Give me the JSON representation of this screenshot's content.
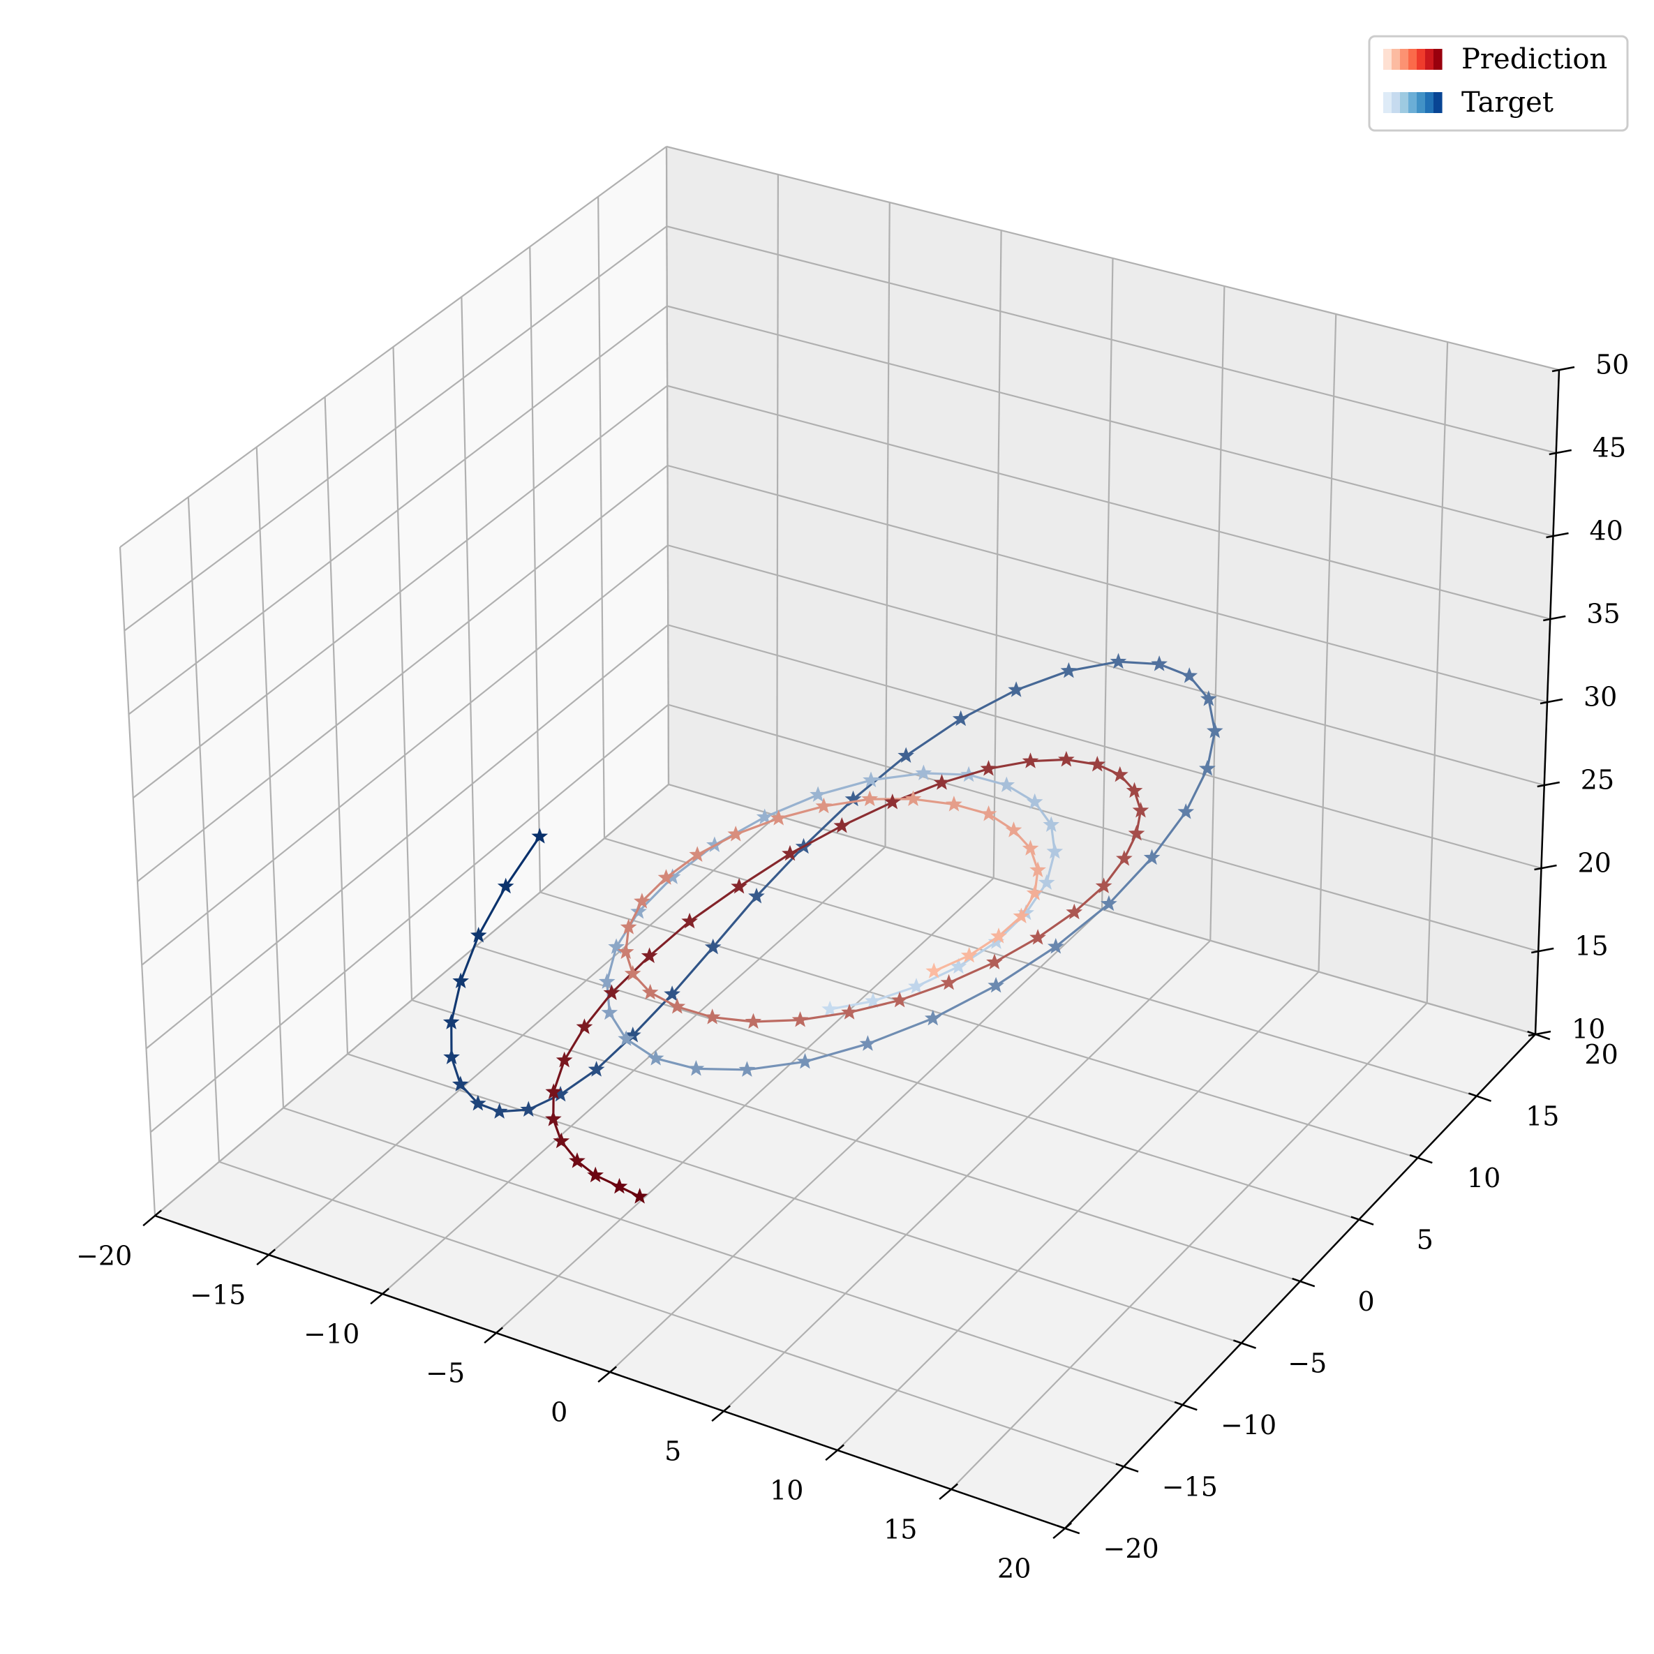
{
  "chart_data": {
    "type": "line",
    "projection": "3d",
    "title": "",
    "xlabel": "",
    "ylabel": "",
    "zlabel": "",
    "xlim": [
      -20,
      20
    ],
    "ylim": [
      -20,
      20
    ],
    "zlim": [
      10,
      50
    ],
    "x_ticks": [
      "−20",
      "−15",
      "−10",
      "−5",
      "0",
      "5",
      "10",
      "15",
      "20"
    ],
    "y_ticks": [
      "−20",
      "−15",
      "−10",
      "−5",
      "0",
      "5",
      "10",
      "15",
      "20"
    ],
    "z_ticks": [
      "10",
      "15",
      "20",
      "25",
      "30",
      "35",
      "40",
      "45",
      "50"
    ],
    "grid": true,
    "marker": "star",
    "legend": {
      "position": "top-right",
      "entries": [
        {
          "name": "Prediction",
          "colormap": "Reds",
          "swatch_colors": [
            "#fee0d2",
            "#fcbba1",
            "#fc9272",
            "#fb6a4a",
            "#ef3b2c",
            "#cb181d",
            "#99000d"
          ]
        },
        {
          "name": "Target",
          "colormap": "Blues",
          "swatch_colors": [
            "#deebf7",
            "#c6dbef",
            "#9ecae1",
            "#6baed6",
            "#4292c6",
            "#2171b5",
            "#084594"
          ]
        }
      ]
    },
    "series": [
      {
        "name": "Prediction",
        "start_color": "#67000d",
        "end_color": "#fcbba1",
        "points": [
          [
            -3.6,
            -10.9,
            12.6
          ],
          [
            -4.5,
            -10.9,
            12.8
          ],
          [
            -5.5,
            -11.0,
            13.1
          ],
          [
            -6.3,
            -11.0,
            13.6
          ],
          [
            -7.1,
            -10.8,
            14.3
          ],
          [
            -7.6,
            -10.5,
            15.2
          ],
          [
            -7.9,
            -9.9,
            16.3
          ],
          [
            -7.9,
            -9.0,
            17.6
          ],
          [
            -7.6,
            -7.9,
            19.0
          ],
          [
            -7.1,
            -6.6,
            20.4
          ],
          [
            -6.3,
            -5.0,
            21.9
          ],
          [
            -5.4,
            -3.4,
            23.3
          ],
          [
            -4.2,
            -1.6,
            24.7
          ],
          [
            -3.0,
            0.3,
            25.9
          ],
          [
            -1.7,
            2.1,
            26.9
          ],
          [
            -0.4,
            3.8,
            27.7
          ],
          [
            0.9,
            5.4,
            28.3
          ],
          [
            2.2,
            6.8,
            28.7
          ],
          [
            3.4,
            8.0,
            28.8
          ],
          [
            4.5,
            8.9,
            28.7
          ],
          [
            5.5,
            9.6,
            28.3
          ],
          [
            6.3,
            10.0,
            27.7
          ],
          [
            6.9,
            10.1,
            26.9
          ],
          [
            7.3,
            9.9,
            26.0
          ],
          [
            7.4,
            9.4,
            25.0
          ],
          [
            7.3,
            8.6,
            24.0
          ],
          [
            7.0,
            7.5,
            23.0
          ],
          [
            6.4,
            6.2,
            22.1
          ],
          [
            5.6,
            4.7,
            21.3
          ],
          [
            4.6,
            3.0,
            20.6
          ],
          [
            3.5,
            1.3,
            20.1
          ],
          [
            2.3,
            -0.5,
            19.8
          ],
          [
            1.0,
            -2.2,
            19.7
          ],
          [
            -0.3,
            -3.8,
            19.8
          ],
          [
            -1.6,
            -5.2,
            20.1
          ],
          [
            -2.8,
            -6.3,
            20.6
          ],
          [
            -3.9,
            -7.1,
            21.3
          ],
          [
            -4.8,
            -7.6,
            22.1
          ],
          [
            -5.5,
            -7.7,
            23.0
          ],
          [
            -5.9,
            -7.5,
            24.0
          ],
          [
            -6.1,
            -6.9,
            25.0
          ],
          [
            -6.0,
            -6.0,
            26.0
          ],
          [
            -5.6,
            -4.8,
            26.8
          ],
          [
            -5.0,
            -3.4,
            27.5
          ],
          [
            -4.2,
            -1.8,
            28.0
          ],
          [
            -3.2,
            -0.2,
            28.3
          ],
          [
            -2.1,
            1.4,
            28.4
          ],
          [
            -0.9,
            2.9,
            28.3
          ],
          [
            0.3,
            4.2,
            27.9
          ],
          [
            1.5,
            5.3,
            27.3
          ],
          [
            2.6,
            6.1,
            26.6
          ],
          [
            3.5,
            6.5,
            25.7
          ],
          [
            4.2,
            6.6,
            24.8
          ],
          [
            4.7,
            6.3,
            23.9
          ],
          [
            4.9,
            5.7,
            23.0
          ],
          [
            4.8,
            4.8,
            22.2
          ],
          [
            4.4,
            3.7,
            21.6
          ],
          [
            3.8,
            2.4,
            21.1
          ],
          [
            3.0,
            1.0,
            20.8
          ]
        ]
      },
      {
        "name": "Target",
        "start_color": "#08306b",
        "end_color": "#c6dbef",
        "points": [
          [
            -17.0,
            5.0,
            18.0
          ],
          [
            -16.8,
            2.0,
            17.0
          ],
          [
            -16.3,
            -1.0,
            16.2
          ],
          [
            -15.5,
            -3.8,
            15.6
          ],
          [
            -14.5,
            -6.3,
            15.2
          ],
          [
            -13.3,
            -8.4,
            15.0
          ],
          [
            -12.0,
            -10.0,
            15.0
          ],
          [
            -10.6,
            -11.1,
            15.2
          ],
          [
            -9.3,
            -11.7,
            15.7
          ],
          [
            -8.0,
            -11.7,
            16.4
          ],
          [
            -6.9,
            -11.1,
            17.4
          ],
          [
            -5.9,
            -10.0,
            18.6
          ],
          [
            -5.1,
            -8.5,
            20.0
          ],
          [
            -4.4,
            -6.6,
            21.5
          ],
          [
            -3.8,
            -4.4,
            23.1
          ],
          [
            -3.2,
            -2.0,
            24.8
          ],
          [
            -2.5,
            0.5,
            26.4
          ],
          [
            -1.7,
            3.0,
            27.9
          ],
          [
            -0.7,
            5.4,
            29.3
          ],
          [
            0.5,
            7.6,
            30.5
          ],
          [
            1.9,
            9.5,
            31.5
          ],
          [
            3.4,
            11.0,
            32.2
          ],
          [
            5.0,
            12.1,
            32.6
          ],
          [
            6.5,
            12.7,
            32.6
          ],
          [
            7.8,
            12.8,
            32.3
          ],
          [
            8.9,
            12.4,
            31.6
          ],
          [
            9.7,
            11.5,
            30.6
          ],
          [
            10.1,
            10.2,
            29.4
          ],
          [
            10.1,
            8.5,
            28.0
          ],
          [
            9.7,
            6.5,
            26.5
          ],
          [
            9.0,
            4.3,
            25.0
          ],
          [
            7.9,
            2.0,
            23.6
          ],
          [
            6.5,
            -0.3,
            22.3
          ],
          [
            4.9,
            -2.5,
            21.2
          ],
          [
            3.1,
            -4.5,
            20.3
          ],
          [
            1.3,
            -6.3,
            19.7
          ],
          [
            -0.5,
            -7.7,
            19.4
          ],
          [
            -2.2,
            -8.7,
            19.4
          ],
          [
            -3.7,
            -9.2,
            19.7
          ],
          [
            -5.0,
            -9.2,
            20.3
          ],
          [
            -6.0,
            -8.7,
            21.1
          ],
          [
            -6.6,
            -7.8,
            22.1
          ],
          [
            -6.9,
            -6.5,
            23.2
          ],
          [
            -6.8,
            -4.9,
            24.3
          ],
          [
            -6.3,
            -3.1,
            25.4
          ],
          [
            -5.5,
            -1.2,
            26.4
          ],
          [
            -4.4,
            0.8,
            27.2
          ],
          [
            -3.1,
            2.7,
            27.8
          ],
          [
            -1.7,
            4.4,
            28.1
          ],
          [
            -0.2,
            5.9,
            28.1
          ],
          [
            1.2,
            7.0,
            27.8
          ],
          [
            2.5,
            7.7,
            27.2
          ],
          [
            3.6,
            8.0,
            26.4
          ],
          [
            4.4,
            7.9,
            25.4
          ],
          [
            4.9,
            7.3,
            24.4
          ],
          [
            5.1,
            6.3,
            23.3
          ],
          [
            4.9,
            5.0,
            22.3
          ],
          [
            4.4,
            3.5,
            21.4
          ],
          [
            3.6,
            1.9,
            20.7
          ],
          [
            2.6,
            0.3,
            20.2
          ],
          [
            1.5,
            -1.2,
            19.9
          ],
          [
            0.3,
            -2.5,
            19.8
          ]
        ]
      }
    ]
  }
}
